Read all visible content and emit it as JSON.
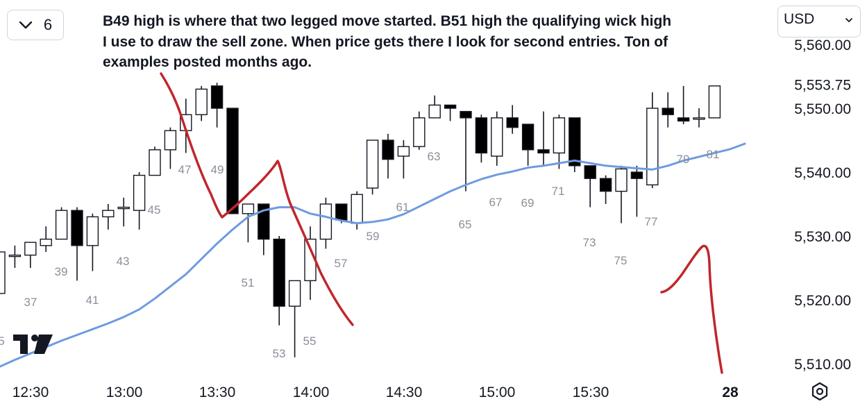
{
  "toolbar": {
    "interval_value": "6",
    "currency": "USD"
  },
  "annotation_text": "B49 high is where that two legged move started. B51 high the qualifying wick high I use to draw the sell zone. When price gets there I look for second entries. Ton of examples posted months ago.",
  "colors": {
    "ma_line": "#6d9be0",
    "annotation_ink": "#c0262c",
    "bull_body": "#ffffff",
    "bear_body": "#000000",
    "text_muted": "#8a8f99"
  },
  "icons": {
    "interval": "chevron-down-icon",
    "currency": "chevron-down-icon",
    "logo": "tradingview-logo-icon",
    "settings": "hexagon-settings-icon"
  },
  "chart_data": {
    "type": "candlestick",
    "y_axis": {
      "min": 5506,
      "max": 5562,
      "ticks": [
        "5,510.00",
        "5,520.00",
        "5,530.00",
        "5,540.00",
        "5,550.00",
        "5,560.00"
      ],
      "current_price_label": "5,553.75"
    },
    "x_axis": {
      "ticks": [
        "12:30",
        "13:00",
        "13:30",
        "14:00",
        "14:30",
        "15:00",
        "15:30",
        "28"
      ]
    },
    "bar_labels": [
      "5",
      "37",
      "39",
      "41",
      "43",
      "45",
      "47",
      "49",
      "51",
      "53",
      "55",
      "57",
      "59",
      "61",
      "63",
      "65",
      "67",
      "69",
      "71",
      "73",
      "75",
      "77",
      "79",
      "81"
    ],
    "candles": [
      {
        "o": 5521,
        "h": 5528,
        "l": 5521,
        "c": 5527.5
      },
      {
        "o": 5527,
        "h": 5528.5,
        "l": 5525,
        "c": 5527
      },
      {
        "o": 5527,
        "h": 5529,
        "l": 5525,
        "c": 5529
      },
      {
        "o": 5528.5,
        "h": 5531.5,
        "l": 5527.5,
        "c": 5529.5
      },
      {
        "o": 5529.5,
        "h": 5534.5,
        "l": 5529.5,
        "c": 5534
      },
      {
        "o": 5534,
        "h": 5534.5,
        "l": 5523,
        "c": 5528.5
      },
      {
        "o": 5528.5,
        "h": 5533.5,
        "l": 5524.5,
        "c": 5533
      },
      {
        "o": 5533,
        "h": 5535,
        "l": 5531,
        "c": 5534
      },
      {
        "o": 5534.5,
        "h": 5536,
        "l": 5531.5,
        "c": 5534.5
      },
      {
        "o": 5534,
        "h": 5540,
        "l": 5531,
        "c": 5539.5
      },
      {
        "o": 5539.5,
        "h": 5544,
        "l": 5539.5,
        "c": 5543.5
      },
      {
        "o": 5543.5,
        "h": 5547,
        "l": 5540.5,
        "c": 5546.5
      },
      {
        "o": 5546.5,
        "h": 5551.5,
        "l": 5543,
        "c": 5549
      },
      {
        "o": 5549,
        "h": 5553.5,
        "l": 5548,
        "c": 5553
      },
      {
        "o": 5553.5,
        "h": 5554,
        "l": 5547,
        "c": 5550
      },
      {
        "o": 5550,
        "h": 5550,
        "l": 5534,
        "c": 5533.5
      },
      {
        "o": 5533.5,
        "h": 5535,
        "l": 5529,
        "c": 5535
      },
      {
        "o": 5535,
        "h": 5535,
        "l": 5527,
        "c": 5529.5
      },
      {
        "o": 5529.5,
        "h": 5530,
        "l": 5516,
        "c": 5519
      },
      {
        "o": 5519,
        "h": 5523,
        "l": 5511,
        "c": 5523
      },
      {
        "o": 5523,
        "h": 5531.5,
        "l": 5520,
        "c": 5529.5
      },
      {
        "o": 5529.5,
        "h": 5536,
        "l": 5528,
        "c": 5535
      },
      {
        "o": 5535,
        "h": 5535,
        "l": 5532,
        "c": 5532.5
      },
      {
        "o": 5532,
        "h": 5537,
        "l": 5531,
        "c": 5536.5
      },
      {
        "o": 5537.5,
        "h": 5545,
        "l": 5536.5,
        "c": 5545
      },
      {
        "o": 5545,
        "h": 5546,
        "l": 5539,
        "c": 5542
      },
      {
        "o": 5542.5,
        "h": 5545,
        "l": 5539,
        "c": 5544
      },
      {
        "o": 5544,
        "h": 5549.5,
        "l": 5543.5,
        "c": 5548.5
      },
      {
        "o": 5548.5,
        "h": 5552,
        "l": 5548.5,
        "c": 5550.5
      },
      {
        "o": 5550.5,
        "h": 5550.5,
        "l": 5548,
        "c": 5550
      },
      {
        "o": 5549.5,
        "h": 5549.5,
        "l": 5537,
        "c": 5548.5
      },
      {
        "o": 5548.5,
        "h": 5549,
        "l": 5541.5,
        "c": 5543
      },
      {
        "o": 5542.5,
        "h": 5549.5,
        "l": 5541,
        "c": 5548.5
      },
      {
        "o": 5548.5,
        "h": 5550.5,
        "l": 5546,
        "c": 5547
      },
      {
        "o": 5547.5,
        "h": 5547.5,
        "l": 5541,
        "c": 5543.5
      },
      {
        "o": 5543.5,
        "h": 5549.5,
        "l": 5541,
        "c": 5543
      },
      {
        "o": 5543,
        "h": 5549,
        "l": 5540.5,
        "c": 5548.5
      },
      {
        "o": 5548.5,
        "h": 5548.5,
        "l": 5540,
        "c": 5541
      },
      {
        "o": 5541,
        "h": 5541,
        "l": 5534.5,
        "c": 5539
      },
      {
        "o": 5539,
        "h": 5539.5,
        "l": 5535,
        "c": 5537
      },
      {
        "o": 5537,
        "h": 5541,
        "l": 5532,
        "c": 5540.5
      },
      {
        "o": 5540,
        "h": 5541,
        "l": 5533,
        "c": 5539
      },
      {
        "o": 5538,
        "h": 5552.5,
        "l": 5537.5,
        "c": 5550
      },
      {
        "o": 5550,
        "h": 5552.5,
        "l": 5547,
        "c": 5549
      },
      {
        "o": 5548.5,
        "h": 5553.5,
        "l": 5547.5,
        "c": 5548
      },
      {
        "o": 5548.5,
        "h": 5550,
        "l": 5547,
        "c": 5548.5
      },
      {
        "o": 5548.5,
        "h": 5553.5,
        "l": 5548.5,
        "c": 5553.5
      }
    ],
    "moving_average": [
      5509.5,
      5510.6,
      5511.6,
      5512.6,
      5513.6,
      5514.5,
      5515.4,
      5516.3,
      5517.3,
      5518.5,
      5520.2,
      5522.1,
      5524.0,
      5526.4,
      5528.8,
      5531.0,
      5533.0,
      5534.0,
      5534.5,
      5534.5,
      5533.5,
      5533.0,
      5532.4,
      5532.0,
      5532.2,
      5532.6,
      5533.4,
      5534.6,
      5535.8,
      5537.0,
      5538.0,
      5538.9,
      5539.6,
      5540.1,
      5540.7,
      5541.0,
      5541.4,
      5541.8,
      5541.4,
      5541.0,
      5540.8,
      5540.6,
      5540.4,
      5541.0,
      5541.8,
      5542.4,
      5543.0,
      5543.6,
      5544.5
    ]
  }
}
